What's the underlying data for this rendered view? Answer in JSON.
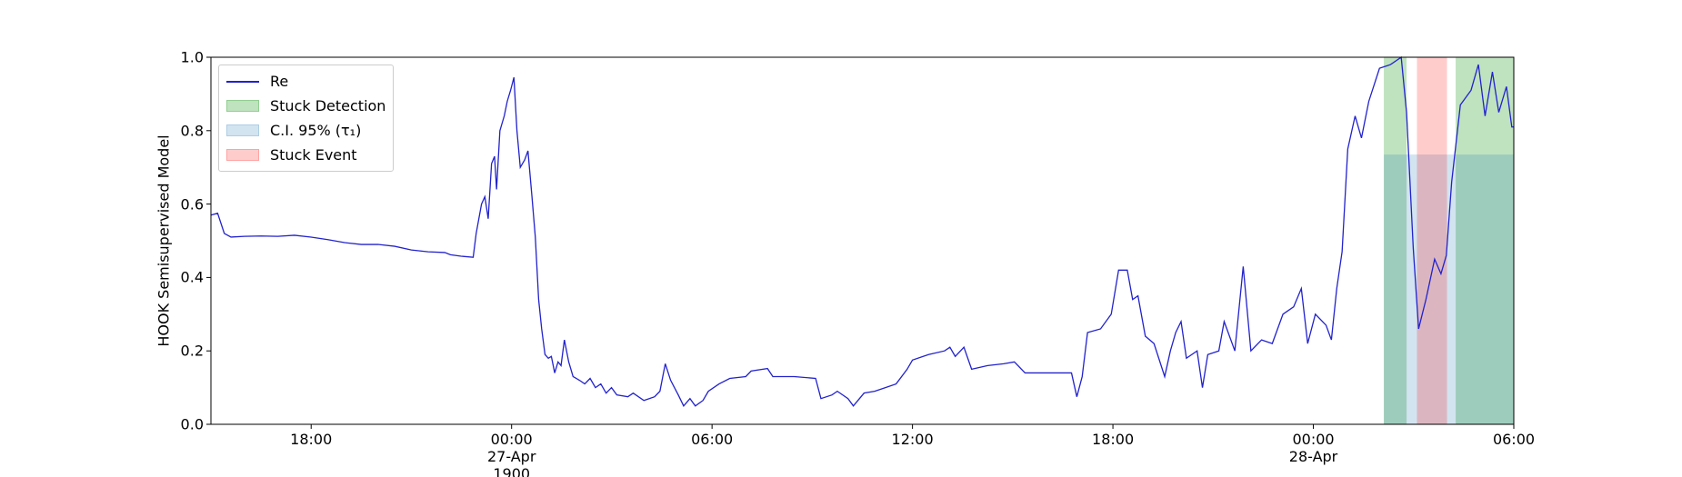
{
  "chart_data": {
    "type": "line",
    "ylabel": "HOOK Semisupervised Model",
    "xlim": [
      -9,
      30
    ],
    "ylim": [
      0,
      1
    ],
    "xticks": [
      {
        "value": -6,
        "label": "18:00"
      },
      {
        "value": 0,
        "label": "00:00\n27-Apr\n1900"
      },
      {
        "value": 6,
        "label": "06:00"
      },
      {
        "value": 12,
        "label": "12:00"
      },
      {
        "value": 18,
        "label": "18:00"
      },
      {
        "value": 24,
        "label": "00:00\n28-Apr"
      },
      {
        "value": 30,
        "label": "06:00"
      }
    ],
    "yticks": [
      {
        "value": 0,
        "label": "0.0"
      },
      {
        "value": 0.2,
        "label": "0.2"
      },
      {
        "value": 0.4,
        "label": "0.4"
      },
      {
        "value": 0.6,
        "label": "0.6"
      },
      {
        "value": 0.8,
        "label": "0.8"
      },
      {
        "value": 1,
        "label": "1.0"
      }
    ],
    "legend": "upper left",
    "x": [
      -9,
      -8.8,
      -8.6,
      -8.4,
      -8,
      -7.5,
      -7,
      -6.5,
      -6,
      -5.5,
      -5,
      -4.5,
      -4,
      -3.5,
      -3,
      -2.5,
      -2,
      -1.83,
      -1.51,
      -1.15,
      -1.06,
      -0.9,
      -0.8,
      -0.7,
      -0.6,
      -0.51,
      -0.45,
      -0.35,
      -0.22,
      -0.13,
      -0.03,
      0.07,
      0.16,
      0.26,
      0.39,
      0.49,
      0.61,
      0.71,
      0.81,
      0.9,
      1.0,
      1.1,
      1.19,
      1.29,
      1.39,
      1.48,
      1.58,
      1.71,
      1.84,
      2.03,
      2.19,
      2.35,
      2.51,
      2.67,
      2.83,
      2.99,
      3.15,
      3.48,
      3.64,
      3.96,
      4.28,
      4.44,
      4.6,
      4.76,
      4.99,
      5.15,
      5.34,
      5.5,
      5.73,
      5.89,
      6.21,
      6.53,
      7.01,
      7.17,
      7.66,
      7.82,
      8.46,
      9.1,
      9.26,
      9.59,
      9.75,
      10.07,
      10.23,
      10.55,
      10.87,
      11.19,
      11.51,
      11.84,
      12.0,
      12.48,
      12.96,
      13.12,
      13.28,
      13.54,
      13.77,
      14.25,
      14.73,
      15.05,
      15.37,
      16.02,
      16.76,
      16.92,
      17.08,
      17.24,
      17.63,
      17.95,
      18.17,
      18.43,
      18.59,
      18.75,
      18.97,
      19.23,
      19.55,
      19.72,
      19.88,
      20.04,
      20.2,
      20.52,
      20.68,
      20.84,
      21.17,
      21.33,
      21.65,
      21.9,
      22.13,
      22.45,
      22.77,
      23.09,
      23.41,
      23.64,
      23.83,
      24.06,
      24.38,
      24.54,
      24.7,
      24.86,
      25.03,
      25.25,
      25.44,
      25.66,
      25.98,
      26.31,
      26.63,
      26.79,
      26.99,
      27.15,
      27.37,
      27.63,
      27.82,
      27.98,
      28.14,
      28.4,
      28.72,
      28.94,
      29.14,
      29.36,
      29.55,
      29.78,
      29.94,
      30
    ],
    "series": [
      {
        "name": "Re",
        "color": "#2222cc",
        "values": [
          0.57,
          0.575,
          0.52,
          0.51,
          0.512,
          0.513,
          0.512,
          0.515,
          0.51,
          0.503,
          0.495,
          0.49,
          0.49,
          0.485,
          0.475,
          0.47,
          0.468,
          0.462,
          0.458,
          0.455,
          0.52,
          0.6,
          0.62,
          0.56,
          0.71,
          0.73,
          0.64,
          0.8,
          0.84,
          0.88,
          0.91,
          0.945,
          0.8,
          0.7,
          0.72,
          0.745,
          0.62,
          0.51,
          0.34,
          0.26,
          0.19,
          0.18,
          0.185,
          0.14,
          0.17,
          0.16,
          0.23,
          0.17,
          0.13,
          0.12,
          0.11,
          0.125,
          0.1,
          0.11,
          0.085,
          0.1,
          0.08,
          0.075,
          0.085,
          0.065,
          0.075,
          0.09,
          0.165,
          0.12,
          0.08,
          0.05,
          0.07,
          0.05,
          0.065,
          0.09,
          0.11,
          0.125,
          0.13,
          0.145,
          0.152,
          0.13,
          0.13,
          0.125,
          0.07,
          0.08,
          0.09,
          0.07,
          0.05,
          0.085,
          0.09,
          0.1,
          0.11,
          0.15,
          0.175,
          0.19,
          0.2,
          0.21,
          0.185,
          0.21,
          0.15,
          0.16,
          0.165,
          0.17,
          0.14,
          0.14,
          0.14,
          0.075,
          0.13,
          0.25,
          0.26,
          0.3,
          0.42,
          0.42,
          0.34,
          0.35,
          0.24,
          0.22,
          0.13,
          0.2,
          0.25,
          0.28,
          0.18,
          0.2,
          0.1,
          0.19,
          0.2,
          0.28,
          0.2,
          0.43,
          0.2,
          0.23,
          0.22,
          0.3,
          0.32,
          0.37,
          0.22,
          0.3,
          0.27,
          0.23,
          0.37,
          0.47,
          0.75,
          0.84,
          0.78,
          0.88,
          0.97,
          0.98,
          1.0,
          0.85,
          0.48,
          0.26,
          0.34,
          0.45,
          0.41,
          0.46,
          0.66,
          0.87,
          0.91,
          0.98,
          0.84,
          0.96,
          0.85,
          0.92,
          0.81,
          0.81
        ]
      }
    ],
    "spans": [
      {
        "name": "Stuck Detection",
        "color": "#2ca02c",
        "opacity": 0.3,
        "ranges": [
          [
            26.11,
            26.79
          ],
          [
            28.26,
            30
          ]
        ]
      },
      {
        "name": "C.I. 95% (τ₁)",
        "color": "#1f77b4",
        "opacity": 0.2,
        "ranges": [
          [
            26.11,
            30
          ]
        ],
        "top": 0.735
      },
      {
        "name": "Stuck Event",
        "color": "#ff0000",
        "opacity": 0.2,
        "ranges": [
          [
            27.1,
            28.0
          ]
        ]
      }
    ]
  }
}
